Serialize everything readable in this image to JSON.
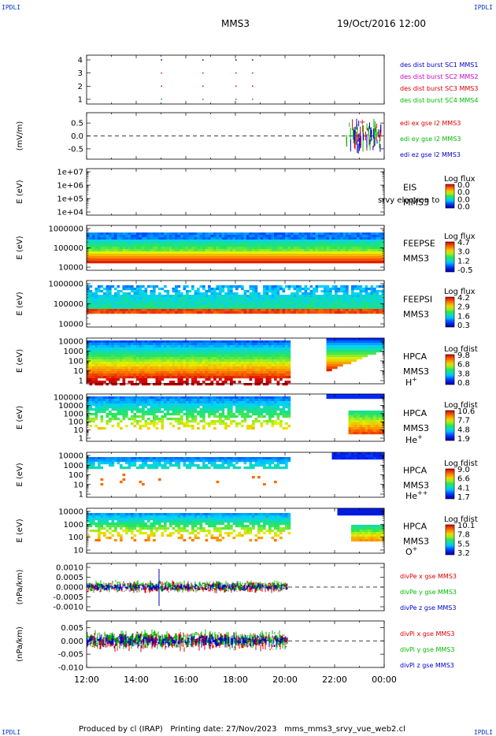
{
  "corner_labels": {
    "tl": "IPDLI",
    "tr": "IPDLI",
    "bl": "IPDLI",
    "br": "IPDLI"
  },
  "header": {
    "title": "MMS3",
    "date": "19/Oct/2016 12:00"
  },
  "footer": {
    "left": "Produced by cl (IRAP)",
    "mid": "Printing date: 27/Nov/2023",
    "right": "mms_mms3_srvy_vue_web2.cl"
  },
  "time_axis": {
    "ticks": [
      "12:00",
      "14:00",
      "16:00",
      "18:00",
      "20:00",
      "22:00",
      "00:00"
    ]
  },
  "chart_data": [
    {
      "type": "scatter",
      "ylim": [
        0.7,
        4.3
      ],
      "yticks": [
        "4",
        "3",
        "2",
        "1"
      ],
      "ylabel": "",
      "series": [
        {
          "name": "des dist burst SC1 MMS1",
          "color": "#0000cc",
          "row": 4
        },
        {
          "name": "des dist burst SC2 MMS2",
          "color": "#cc00cc",
          "row": 3
        },
        {
          "name": "des dist burst SC3 MMS3",
          "color": "#dd0000",
          "row": 2
        },
        {
          "name": "des dist burst SC4 MMS4",
          "color": "#00bb00",
          "row": 1
        }
      ],
      "burst_times": [
        "15:00",
        "16:40",
        "18:00",
        "18:40"
      ]
    },
    {
      "type": "line",
      "ylabel": "(mV/m)",
      "yticks": [
        "0.5",
        "0.0",
        "-0.5"
      ],
      "ylim": [
        -0.9,
        0.9
      ],
      "series": [
        {
          "name": "edi ex gse l2 MMS3",
          "color": "#dd0000"
        },
        {
          "name": "edi ey gse l2 MMS3",
          "color": "#00bb00"
        },
        {
          "name": "edi ez gse l2 MMS3",
          "color": "#0000cc"
        }
      ]
    },
    {
      "type": "heatmap",
      "ylabel": "E (eV)",
      "yticks": [
        "1e+07",
        "1e+06",
        "1e+05",
        "1e+04"
      ],
      "instrument": "EIS",
      "spacecraft": "MMS3",
      "overlay_text": "srvy electron to",
      "colorbar": {
        "title": "Log flux",
        "ticks": [
          "0.0",
          "0.0",
          "0.0",
          "0.0"
        ]
      }
    },
    {
      "type": "heatmap",
      "ylabel": "E (eV)",
      "yticks": [
        "1000000",
        "100000",
        "10000"
      ],
      "instrument": "FEEPSE",
      "spacecraft": "MMS3",
      "colorbar": {
        "title": "Log flux",
        "ticks": [
          "4.7",
          "3.0",
          "1.2",
          "-0.5"
        ]
      }
    },
    {
      "type": "heatmap",
      "ylabel": "E (eV)",
      "yticks": [
        "1000000",
        "100000",
        "10000"
      ],
      "instrument": "FEEPSI",
      "spacecraft": "MMS3",
      "colorbar": {
        "title": "Log flux",
        "ticks": [
          "4.2",
          "2.9",
          "1.6",
          "0.3"
        ]
      }
    },
    {
      "type": "heatmap",
      "ylabel": "E (eV)",
      "yticks": [
        "10000",
        "1000",
        "100",
        "10",
        "1"
      ],
      "instrument": "HPCA",
      "spacecraft": "MMS3",
      "species": "H+",
      "colorbar": {
        "title": "Log fdist",
        "ticks": [
          "9.8",
          "6.8",
          "3.8",
          "0.8"
        ]
      }
    },
    {
      "type": "heatmap",
      "ylabel": "E (eV)",
      "yticks": [
        "100000",
        "10000",
        "1000",
        "100",
        "10",
        "1"
      ],
      "instrument": "HPCA",
      "spacecraft": "MMS3",
      "species": "He+",
      "colorbar": {
        "title": "Log fdist",
        "ticks": [
          "10.6",
          "7.7",
          "4.8",
          "1.9"
        ]
      }
    },
    {
      "type": "heatmap",
      "ylabel": "E (eV)",
      "yticks": [
        "10000",
        "1000",
        "100",
        "10",
        "1"
      ],
      "instrument": "HPCA",
      "spacecraft": "MMS3",
      "species": "He++",
      "colorbar": {
        "title": "Log fdist",
        "ticks": [
          "9.0",
          "6.6",
          "4.1",
          "1.7"
        ]
      }
    },
    {
      "type": "heatmap",
      "ylabel": "E (eV)",
      "yticks": [
        "10000",
        "1000",
        "100",
        "10"
      ],
      "instrument": "HPCA",
      "spacecraft": "MMS3",
      "species": "O+",
      "colorbar": {
        "title": "Log fdist",
        "ticks": [
          "10.1",
          "7.8",
          "5.5",
          "3.2"
        ]
      }
    },
    {
      "type": "line",
      "ylabel": "(nPa/km)",
      "yticks": [
        "0.0010",
        "0.0005",
        "0.0000",
        "-0.0005",
        "-0.0010"
      ],
      "ylim": [
        -0.0012,
        0.0012
      ],
      "series": [
        {
          "name": "divPe x gse MMS3",
          "color": "#dd0000"
        },
        {
          "name": "divPe y gse MMS3",
          "color": "#00bb00"
        },
        {
          "name": "divPe z gse MMS3",
          "color": "#0000cc"
        }
      ]
    },
    {
      "type": "line",
      "ylabel": "(nPa/km)",
      "yticks": [
        "0.005",
        "0.000",
        "-0.005",
        "-0.010"
      ],
      "ylim": [
        -0.01,
        0.0075
      ],
      "series": [
        {
          "name": "divPi x gse MMS3",
          "color": "#dd0000"
        },
        {
          "name": "divPi y gse MMS3",
          "color": "#00bb00"
        },
        {
          "name": "divPi z gse MMS3",
          "color": "#0000cc"
        }
      ]
    }
  ]
}
